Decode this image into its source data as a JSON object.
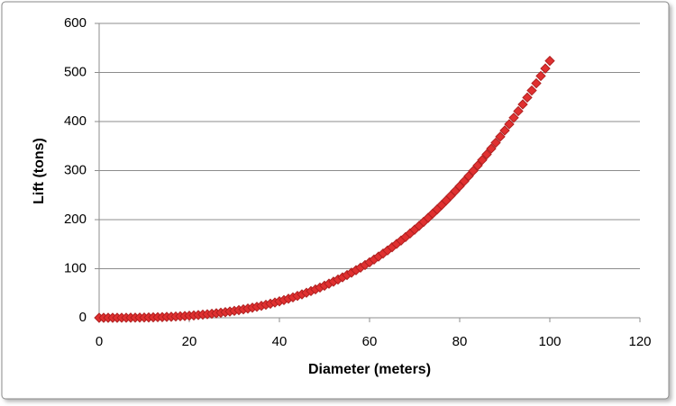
{
  "chart_data": {
    "type": "scatter",
    "xlabel": "Diameter (meters)",
    "ylabel": "Lift (tons)",
    "x": [
      0,
      1,
      2,
      3,
      4,
      5,
      6,
      7,
      8,
      9,
      10,
      11,
      12,
      13,
      14,
      15,
      16,
      17,
      18,
      19,
      20,
      21,
      22,
      23,
      24,
      25,
      26,
      27,
      28,
      29,
      30,
      31,
      32,
      33,
      34,
      35,
      36,
      37,
      38,
      39,
      40,
      41,
      42,
      43,
      44,
      45,
      46,
      47,
      48,
      49,
      50,
      51,
      52,
      53,
      54,
      55,
      56,
      57,
      58,
      59,
      60,
      61,
      62,
      63,
      64,
      65,
      66,
      67,
      68,
      69,
      70,
      71,
      72,
      73,
      74,
      75,
      76,
      77,
      78,
      79,
      80,
      81,
      82,
      83,
      84,
      85,
      86,
      87,
      88,
      89,
      90,
      91,
      92,
      93,
      94,
      95,
      96,
      97,
      98,
      99,
      100
    ],
    "series": [
      {
        "color": "#e03030",
        "values": [
          0,
          0,
          0,
          0,
          0,
          0.1,
          0.1,
          0.2,
          0.3,
          0.4,
          0.5,
          0.7,
          0.9,
          1.2,
          1.4,
          1.8,
          2.1,
          2.6,
          3.1,
          3.6,
          4.2,
          4.8,
          5.6,
          6.4,
          7.2,
          8.2,
          9.2,
          10.3,
          11.5,
          12.8,
          14.1,
          15.6,
          17.2,
          18.8,
          20.6,
          22.4,
          24.4,
          26.5,
          28.7,
          31.1,
          33.5,
          36.1,
          38.8,
          41.6,
          44.6,
          47.7,
          51.0,
          54.4,
          57.9,
          61.6,
          65.4,
          69.5,
          73.6,
          78.0,
          82.4,
          87.1,
          92.0,
          97.0,
          102.2,
          107.5,
          113.1,
          118.8,
          124.8,
          130.9,
          137.3,
          143.8,
          150.5,
          157.5,
          164.6,
          172.0,
          179.6,
          187.4,
          195.4,
          203.7,
          212.2,
          220.9,
          229.8,
          239.0,
          248.5,
          258.2,
          268.1,
          278.3,
          288.7,
          299.4,
          310.3,
          321.6,
          333.0,
          344.8,
          356.8,
          369.1,
          381.7,
          394.6,
          407.7,
          421.2,
          434.9,
          448.9,
          463.2,
          477.9,
          492.8,
          508.0,
          523.6
        ]
      }
    ],
    "xlim": [
      0,
      120
    ],
    "xticks": [
      0,
      20,
      40,
      60,
      80,
      100,
      120
    ],
    "ylim": [
      0,
      600
    ],
    "yticks": [
      0,
      100,
      200,
      300,
      400,
      500,
      600
    ],
    "grid": true
  }
}
